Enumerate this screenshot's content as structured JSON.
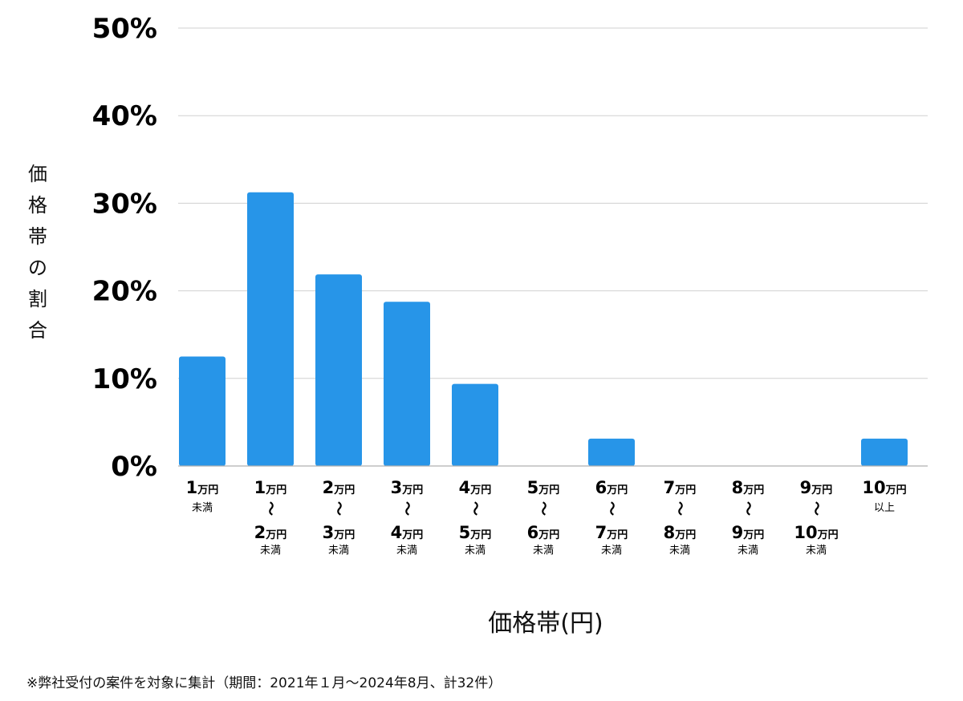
{
  "chart_data": {
    "type": "bar",
    "ylabel": "価格帯の割合",
    "xlabel": "価格帯(円)",
    "footnote": "※弊社受付の案件を対象に集計（期間：2021年１月～2024年8月、計32件）",
    "ylim": [
      0,
      50
    ],
    "yticks": [
      "0%",
      "10%",
      "20%",
      "30%",
      "40%",
      "50%"
    ],
    "ytick_values": [
      0,
      10,
      20,
      30,
      40,
      50
    ],
    "grid": true,
    "bar_color": "#2795e8",
    "categories": [
      {
        "full": "1万円未満",
        "lines": [
          {
            "n": "1",
            "u": "万円"
          },
          {
            "s": "未満"
          }
        ]
      },
      {
        "full": "1万円〜2万円未満",
        "lines": [
          {
            "n": "1",
            "u": "万円"
          },
          {
            "t": "〜"
          },
          {
            "n": "2",
            "u": "万円"
          },
          {
            "s": "未満"
          }
        ]
      },
      {
        "full": "2万円〜3万円未満",
        "lines": [
          {
            "n": "2",
            "u": "万円"
          },
          {
            "t": "〜"
          },
          {
            "n": "3",
            "u": "万円"
          },
          {
            "s": "未満"
          }
        ]
      },
      {
        "full": "3万円〜4万円未満",
        "lines": [
          {
            "n": "3",
            "u": "万円"
          },
          {
            "t": "〜"
          },
          {
            "n": "4",
            "u": "万円"
          },
          {
            "s": "未満"
          }
        ]
      },
      {
        "full": "4万円〜5万円未満",
        "lines": [
          {
            "n": "4",
            "u": "万円"
          },
          {
            "t": "〜"
          },
          {
            "n": "5",
            "u": "万円"
          },
          {
            "s": "未満"
          }
        ]
      },
      {
        "full": "5万円〜6万円未満",
        "lines": [
          {
            "n": "5",
            "u": "万円"
          },
          {
            "t": "〜"
          },
          {
            "n": "6",
            "u": "万円"
          },
          {
            "s": "未満"
          }
        ]
      },
      {
        "full": "6万円〜7万円未満",
        "lines": [
          {
            "n": "6",
            "u": "万円"
          },
          {
            "t": "〜"
          },
          {
            "n": "7",
            "u": "万円"
          },
          {
            "s": "未満"
          }
        ]
      },
      {
        "full": "7万円〜8万円未満",
        "lines": [
          {
            "n": "7",
            "u": "万円"
          },
          {
            "t": "〜"
          },
          {
            "n": "8",
            "u": "万円"
          },
          {
            "s": "未満"
          }
        ]
      },
      {
        "full": "8万円〜9万円未満",
        "lines": [
          {
            "n": "8",
            "u": "万円"
          },
          {
            "t": "〜"
          },
          {
            "n": "9",
            "u": "万円"
          },
          {
            "s": "未満"
          }
        ]
      },
      {
        "full": "9万円〜10万円未満",
        "lines": [
          {
            "n": "9",
            "u": "万円"
          },
          {
            "t": "〜"
          },
          {
            "n": "10",
            "u": "万円"
          },
          {
            "s": "未満"
          }
        ]
      },
      {
        "full": "10万円以上",
        "lines": [
          {
            "n": "10",
            "u": "万円"
          },
          {
            "s": "以上"
          }
        ]
      }
    ],
    "values": [
      12.5,
      31.25,
      21.875,
      18.75,
      9.375,
      0,
      3.125,
      0,
      0,
      0,
      3.125
    ]
  }
}
